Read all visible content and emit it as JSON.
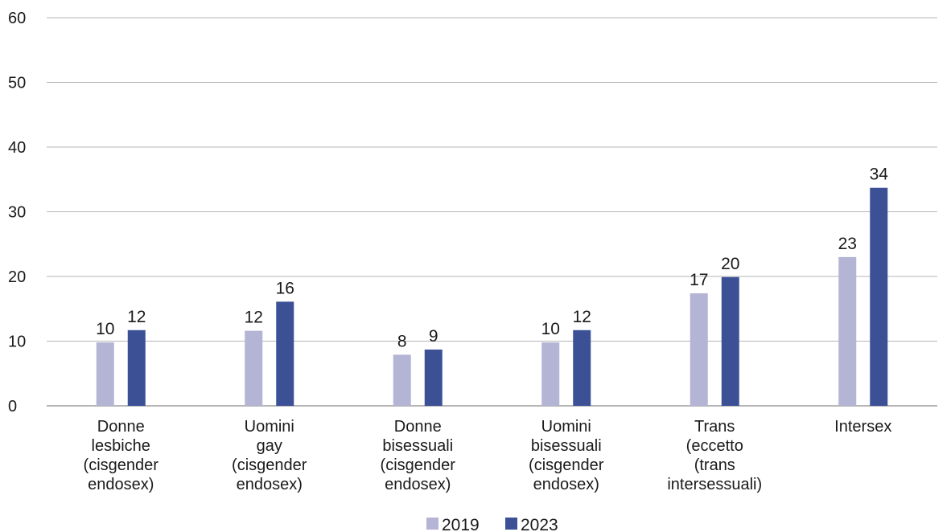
{
  "chart_data": {
    "type": "bar",
    "categories": [
      [
        "Donne",
        "lesbiche",
        "(cisgender",
        "endosex)"
      ],
      [
        "Uomini",
        "gay",
        "(cisgender",
        "endosex)"
      ],
      [
        "Donne",
        "bisessuali",
        "(cisgender",
        "endosex)"
      ],
      [
        "Uomini",
        "bisessuali",
        "(cisgender",
        "endosex)"
      ],
      [
        "Trans",
        "(eccetto",
        "(trans",
        "intersessuali)"
      ],
      [
        "Intersex"
      ]
    ],
    "series": [
      {
        "name": "2019",
        "color": "#b4b4d4",
        "values": [
          9.8,
          11.6,
          7.9,
          9.8,
          17.4,
          23
        ],
        "labels": [
          "10",
          "12",
          "8",
          "10",
          "17",
          "23"
        ]
      },
      {
        "name": "2023",
        "color": "#3c5096",
        "values": [
          11.7,
          16.1,
          8.7,
          11.7,
          19.9,
          33.7
        ],
        "labels": [
          "12",
          "16",
          "9",
          "12",
          "20",
          "34"
        ]
      }
    ],
    "yticks": [
      "0",
      "10",
      "20",
      "30",
      "40",
      "50",
      "60"
    ],
    "ylim": [
      0,
      60
    ],
    "grid": true,
    "legend": "bottom-center",
    "title": "",
    "xlabel": "",
    "ylabel": ""
  }
}
